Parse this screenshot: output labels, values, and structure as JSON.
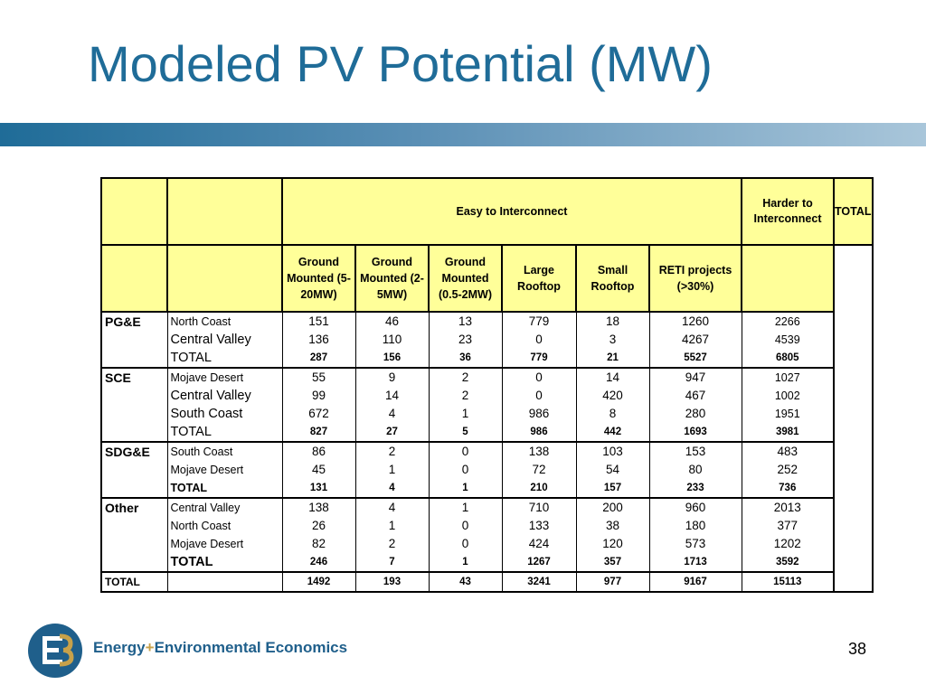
{
  "slide": {
    "title": "Modeled PV Potential (MW)",
    "page_number": "38",
    "brand": {
      "part1": "Energy",
      "plus": "+",
      "part2": "Environmental Economics"
    }
  },
  "colors": {
    "title": "#1f6c98",
    "header_fill": "#ffff99",
    "brand": "#1f5f8b",
    "accent": "#c7a14a"
  },
  "table": {
    "group_headers": {
      "easy": "Easy to Interconnect",
      "harder": "Harder to Interconnect",
      "total": "TOTAL"
    },
    "columns": [
      "Ground Mounted (5-20MW)",
      "Ground Mounted (2-5MW)",
      "Ground Mounted (0.5-2MW)",
      "Large Rooftop",
      "Small Rooftop",
      "RETI projects (>30%)"
    ],
    "utilities": [
      {
        "name": "PG&E",
        "rows": [
          {
            "region": "North Coast",
            "values": [
              "151",
              "46",
              "13",
              "779",
              "18",
              "1260",
              "2266"
            ]
          },
          {
            "region": "Central Valley",
            "values": [
              "136",
              "110",
              "23",
              "0",
              "3",
              "4267",
              "4539"
            ]
          },
          {
            "region": "TOTAL",
            "values": [
              "287",
              "156",
              "36",
              "779",
              "21",
              "5527",
              "6805"
            ]
          }
        ]
      },
      {
        "name": "SCE",
        "rows": [
          {
            "region": "Mojave Desert",
            "values": [
              "55",
              "9",
              "2",
              "0",
              "14",
              "947",
              "1027"
            ]
          },
          {
            "region": "Central Valley",
            "values": [
              "99",
              "14",
              "2",
              "0",
              "420",
              "467",
              "1002"
            ]
          },
          {
            "region": "South Coast",
            "values": [
              "672",
              "4",
              "1",
              "986",
              "8",
              "280",
              "1951"
            ]
          },
          {
            "region": "TOTAL",
            "values": [
              "827",
              "27",
              "5",
              "986",
              "442",
              "1693",
              "3981"
            ]
          }
        ]
      },
      {
        "name": "SDG&E",
        "rows": [
          {
            "region": "South Coast",
            "values": [
              "86",
              "2",
              "0",
              "138",
              "103",
              "153",
              "483"
            ]
          },
          {
            "region": "Mojave Desert",
            "values": [
              "45",
              "1",
              "0",
              "72",
              "54",
              "80",
              "252"
            ]
          },
          {
            "region": "TOTAL",
            "values": [
              "131",
              "4",
              "1",
              "210",
              "157",
              "233",
              "736"
            ]
          }
        ]
      },
      {
        "name": "Other",
        "rows": [
          {
            "region": "Central Valley",
            "values": [
              "138",
              "4",
              "1",
              "710",
              "200",
              "960",
              "2013"
            ]
          },
          {
            "region": "North Coast",
            "values": [
              "26",
              "1",
              "0",
              "133",
              "38",
              "180",
              "377"
            ]
          },
          {
            "region": "Mojave Desert",
            "values": [
              "82",
              "2",
              "0",
              "424",
              "120",
              "573",
              "1202"
            ]
          },
          {
            "region": "TOTAL",
            "values": [
              "246",
              "7",
              "1",
              "1267",
              "357",
              "1713",
              "3592"
            ]
          }
        ]
      }
    ],
    "grand_total": {
      "label": "TOTAL",
      "values": [
        "1492",
        "193",
        "43",
        "3241",
        "977",
        "9167",
        "15113"
      ]
    }
  }
}
